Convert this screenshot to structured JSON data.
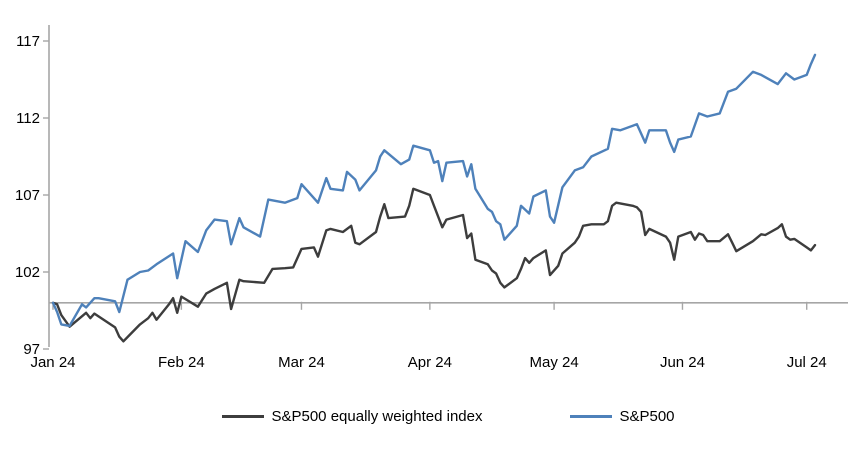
{
  "chart_data": {
    "type": "line",
    "title": "",
    "x_axis": {
      "tick_labels": [
        "Jan 24",
        "Feb 24",
        "Mar 24",
        "Apr 24",
        "May 24",
        "Jun 24",
        "Jul 24"
      ],
      "tick_dates": [
        "2024-01-01",
        "2024-02-01",
        "2024-03-01",
        "2024-04-01",
        "2024-05-01",
        "2024-06-01",
        "2024-07-01"
      ],
      "axis_crosses_at": 100
    },
    "y_axis": {
      "ticks": [
        97,
        102,
        107,
        112,
        117
      ],
      "range": [
        96.5,
        118
      ],
      "baseline_value": 100
    },
    "grid": false,
    "legend_position": "bottom-center",
    "series": [
      {
        "name": "S&P500 equally weighted index",
        "color": "#3d3d3d",
        "points": [
          [
            "2024-01-01",
            100
          ],
          [
            "2024-01-02",
            99.9
          ],
          [
            "2024-01-03",
            99.2
          ],
          [
            "2024-01-05",
            98.45
          ],
          [
            "2024-01-09",
            99.35
          ],
          [
            "2024-01-10",
            99.0
          ],
          [
            "2024-01-11",
            99.3
          ],
          [
            "2024-01-16",
            98.4
          ],
          [
            "2024-01-17",
            97.8
          ],
          [
            "2024-01-18",
            97.5
          ],
          [
            "2024-01-22",
            98.6
          ],
          [
            "2024-01-24",
            99.0
          ],
          [
            "2024-01-25",
            99.35
          ],
          [
            "2024-01-26",
            98.9
          ],
          [
            "2024-01-29",
            99.9
          ],
          [
            "2024-01-30",
            100.3
          ],
          [
            "2024-01-31",
            99.35
          ],
          [
            "2024-02-01",
            100.4
          ],
          [
            "2024-02-05",
            99.75
          ],
          [
            "2024-02-07",
            100.6
          ],
          [
            "2024-02-09",
            100.9
          ],
          [
            "2024-02-12",
            101.3
          ],
          [
            "2024-02-13",
            99.6
          ],
          [
            "2024-02-15",
            101.5
          ],
          [
            "2024-02-16",
            101.4
          ],
          [
            "2024-02-21",
            101.3
          ],
          [
            "2024-02-23",
            102.2
          ],
          [
            "2024-02-26",
            102.25
          ],
          [
            "2024-02-28",
            102.3
          ],
          [
            "2024-03-01",
            103.5
          ],
          [
            "2024-03-04",
            103.6
          ],
          [
            "2024-03-05",
            103.0
          ],
          [
            "2024-03-07",
            104.7
          ],
          [
            "2024-03-08",
            104.8
          ],
          [
            "2024-03-11",
            104.6
          ],
          [
            "2024-03-13",
            105.0
          ],
          [
            "2024-03-14",
            103.9
          ],
          [
            "2024-03-15",
            103.8
          ],
          [
            "2024-03-19",
            104.6
          ],
          [
            "2024-03-20",
            105.6
          ],
          [
            "2024-03-21",
            106.4
          ],
          [
            "2024-03-22",
            105.5
          ],
          [
            "2024-03-26",
            105.6
          ],
          [
            "2024-03-27",
            106.3
          ],
          [
            "2024-03-28",
            107.4
          ],
          [
            "2024-04-01",
            107.0
          ],
          [
            "2024-04-02",
            106.3
          ],
          [
            "2024-04-04",
            104.9
          ],
          [
            "2024-04-05",
            105.4
          ],
          [
            "2024-04-09",
            105.7
          ],
          [
            "2024-04-10",
            104.2
          ],
          [
            "2024-04-11",
            104.5
          ],
          [
            "2024-04-12",
            102.8
          ],
          [
            "2024-04-15",
            102.5
          ],
          [
            "2024-04-16",
            102.1
          ],
          [
            "2024-04-17",
            101.9
          ],
          [
            "2024-04-18",
            101.3
          ],
          [
            "2024-04-19",
            101.0
          ],
          [
            "2024-04-22",
            101.6
          ],
          [
            "2024-04-23",
            102.2
          ],
          [
            "2024-04-24",
            102.9
          ],
          [
            "2024-04-25",
            102.6
          ],
          [
            "2024-04-26",
            102.9
          ],
          [
            "2024-04-29",
            103.4
          ],
          [
            "2024-04-30",
            101.8
          ],
          [
            "2024-05-02",
            102.4
          ],
          [
            "2024-05-03",
            103.2
          ],
          [
            "2024-05-06",
            103.9
          ],
          [
            "2024-05-07",
            104.3
          ],
          [
            "2024-05-08",
            105.0
          ],
          [
            "2024-05-10",
            105.1
          ],
          [
            "2024-05-13",
            105.1
          ],
          [
            "2024-05-14",
            105.3
          ],
          [
            "2024-05-15",
            106.3
          ],
          [
            "2024-05-16",
            106.5
          ],
          [
            "2024-05-20",
            106.3
          ],
          [
            "2024-05-21",
            106.2
          ],
          [
            "2024-05-22",
            105.9
          ],
          [
            "2024-05-23",
            104.4
          ],
          [
            "2024-05-24",
            104.8
          ],
          [
            "2024-05-28",
            104.3
          ],
          [
            "2024-05-29",
            103.9
          ],
          [
            "2024-05-30",
            102.8
          ],
          [
            "2024-05-31",
            104.3
          ],
          [
            "2024-06-03",
            104.6
          ],
          [
            "2024-06-04",
            104.1
          ],
          [
            "2024-06-05",
            104.5
          ],
          [
            "2024-06-06",
            104.4
          ],
          [
            "2024-06-07",
            104.0
          ],
          [
            "2024-06-10",
            104.0
          ],
          [
            "2024-06-12",
            104.45
          ],
          [
            "2024-06-13",
            103.9
          ],
          [
            "2024-06-14",
            103.35
          ],
          [
            "2024-06-18",
            104.0
          ],
          [
            "2024-06-20",
            104.45
          ],
          [
            "2024-06-21",
            104.4
          ],
          [
            "2024-06-24",
            104.85
          ],
          [
            "2024-06-25",
            105.1
          ],
          [
            "2024-06-26",
            104.3
          ],
          [
            "2024-06-27",
            104.1
          ],
          [
            "2024-06-28",
            104.15
          ],
          [
            "2024-07-01",
            103.6
          ],
          [
            "2024-07-02",
            103.4
          ],
          [
            "2024-07-03",
            103.75
          ]
        ]
      },
      {
        "name": "S&P500",
        "color": "#4e81ba",
        "points": [
          [
            "2024-01-01",
            100
          ],
          [
            "2024-01-02",
            99.4
          ],
          [
            "2024-01-03",
            98.6
          ],
          [
            "2024-01-05",
            98.5
          ],
          [
            "2024-01-08",
            99.9
          ],
          [
            "2024-01-09",
            99.7
          ],
          [
            "2024-01-11",
            100.3
          ],
          [
            "2024-01-12",
            100.3
          ],
          [
            "2024-01-16",
            100.1
          ],
          [
            "2024-01-17",
            99.4
          ],
          [
            "2024-01-19",
            101.5
          ],
          [
            "2024-01-22",
            102.0
          ],
          [
            "2024-01-24",
            102.1
          ],
          [
            "2024-01-26",
            102.5
          ],
          [
            "2024-01-30",
            103.2
          ],
          [
            "2024-01-31",
            101.6
          ],
          [
            "2024-02-02",
            104.0
          ],
          [
            "2024-02-05",
            103.3
          ],
          [
            "2024-02-07",
            104.7
          ],
          [
            "2024-02-09",
            105.4
          ],
          [
            "2024-02-12",
            105.3
          ],
          [
            "2024-02-13",
            103.8
          ],
          [
            "2024-02-15",
            105.5
          ],
          [
            "2024-02-16",
            104.9
          ],
          [
            "2024-02-20",
            104.3
          ],
          [
            "2024-02-22",
            106.7
          ],
          [
            "2024-02-26",
            106.5
          ],
          [
            "2024-02-29",
            106.8
          ],
          [
            "2024-03-01",
            107.7
          ],
          [
            "2024-03-05",
            106.5
          ],
          [
            "2024-03-07",
            108.1
          ],
          [
            "2024-03-08",
            107.4
          ],
          [
            "2024-03-11",
            107.3
          ],
          [
            "2024-03-12",
            108.5
          ],
          [
            "2024-03-14",
            108.0
          ],
          [
            "2024-03-15",
            107.3
          ],
          [
            "2024-03-19",
            108.6
          ],
          [
            "2024-03-20",
            109.5
          ],
          [
            "2024-03-21",
            109.9
          ],
          [
            "2024-03-25",
            109.0
          ],
          [
            "2024-03-27",
            109.3
          ],
          [
            "2024-03-28",
            110.2
          ],
          [
            "2024-04-01",
            109.9
          ],
          [
            "2024-04-02",
            109.1
          ],
          [
            "2024-04-03",
            109.2
          ],
          [
            "2024-04-04",
            107.9
          ],
          [
            "2024-04-05",
            109.1
          ],
          [
            "2024-04-09",
            109.2
          ],
          [
            "2024-04-10",
            108.2
          ],
          [
            "2024-04-11",
            109.0
          ],
          [
            "2024-04-12",
            107.4
          ],
          [
            "2024-04-15",
            106.1
          ],
          [
            "2024-04-16",
            105.9
          ],
          [
            "2024-04-17",
            105.3
          ],
          [
            "2024-04-18",
            105.1
          ],
          [
            "2024-04-19",
            104.1
          ],
          [
            "2024-04-22",
            105.0
          ],
          [
            "2024-04-23",
            106.3
          ],
          [
            "2024-04-25",
            105.8
          ],
          [
            "2024-04-26",
            106.9
          ],
          [
            "2024-04-29",
            107.3
          ],
          [
            "2024-04-30",
            105.6
          ],
          [
            "2024-05-01",
            105.2
          ],
          [
            "2024-05-03",
            107.5
          ],
          [
            "2024-05-06",
            108.6
          ],
          [
            "2024-05-08",
            108.8
          ],
          [
            "2024-05-10",
            109.5
          ],
          [
            "2024-05-14",
            110.0
          ],
          [
            "2024-05-15",
            111.3
          ],
          [
            "2024-05-17",
            111.2
          ],
          [
            "2024-05-20",
            111.5
          ],
          [
            "2024-05-21",
            111.6
          ],
          [
            "2024-05-23",
            110.4
          ],
          [
            "2024-05-24",
            111.2
          ],
          [
            "2024-05-28",
            111.2
          ],
          [
            "2024-05-29",
            110.4
          ],
          [
            "2024-05-30",
            109.8
          ],
          [
            "2024-05-31",
            110.6
          ],
          [
            "2024-06-03",
            110.8
          ],
          [
            "2024-06-05",
            112.3
          ],
          [
            "2024-06-07",
            112.1
          ],
          [
            "2024-06-10",
            112.3
          ],
          [
            "2024-06-12",
            113.7
          ],
          [
            "2024-06-14",
            113.9
          ],
          [
            "2024-06-18",
            115.0
          ],
          [
            "2024-06-20",
            114.8
          ],
          [
            "2024-06-24",
            114.2
          ],
          [
            "2024-06-26",
            114.9
          ],
          [
            "2024-06-28",
            114.5
          ],
          [
            "2024-07-01",
            114.8
          ],
          [
            "2024-07-02",
            115.5
          ],
          [
            "2024-07-03",
            116.1
          ]
        ]
      }
    ],
    "style": {
      "axis_color": "#a6a6a6",
      "text_color": "#000000",
      "background": "#ffffff"
    }
  }
}
